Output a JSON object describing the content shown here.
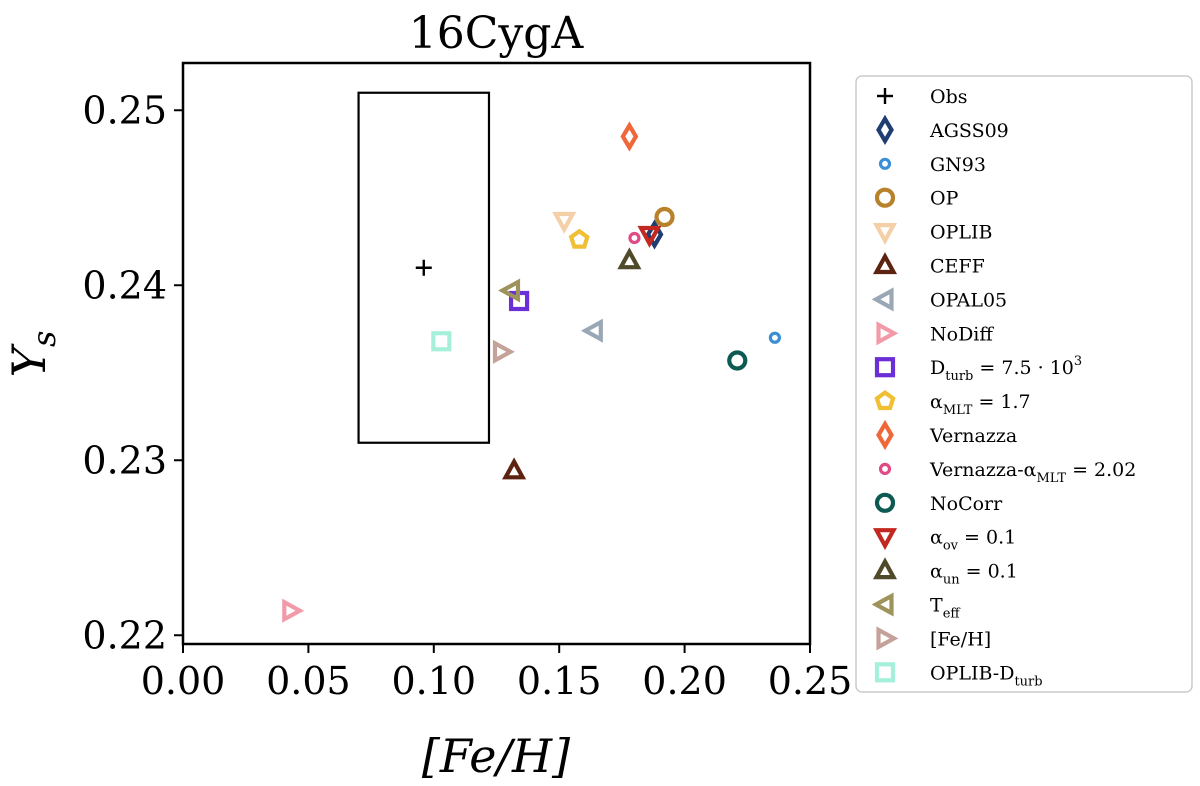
{
  "chart_data": {
    "type": "scatter",
    "title": "16CygA",
    "xlabel": "[Fe/H]",
    "ylabel": "Y_s",
    "xlim": [
      0.0,
      0.25
    ],
    "ylim": [
      0.2195,
      0.2527
    ],
    "x_ticks": [
      "0.00",
      "0.05",
      "0.10",
      "0.15",
      "0.20",
      "0.25"
    ],
    "y_ticks": [
      "0.22",
      "0.23",
      "0.24",
      "0.25"
    ],
    "grid": false,
    "legend_position": "outside right",
    "obs_box": {
      "x": [
        0.07,
        0.122
      ],
      "y": [
        0.231,
        0.251
      ]
    },
    "series": [
      {
        "name": "Obs",
        "marker": "plus",
        "color": "#000000",
        "x": 0.096,
        "y": 0.241
      },
      {
        "name": "AGSS09",
        "marker": "diamond",
        "color": "#1f3d73",
        "x": 0.188,
        "y": 0.2429
      },
      {
        "name": "GN93",
        "marker": "circle-small",
        "color": "#3b8fd6",
        "x": 0.236,
        "y": 0.237
      },
      {
        "name": "OP",
        "marker": "circle",
        "color": "#b8822b",
        "x": 0.192,
        "y": 0.2439
      },
      {
        "name": "OPLIB",
        "marker": "triangle-down",
        "color": "#f5cfa8",
        "x": 0.152,
        "y": 0.2437
      },
      {
        "name": "CEFF",
        "marker": "triangle-up",
        "color": "#5c2410",
        "x": 0.132,
        "y": 0.2294
      },
      {
        "name": "OPAL05",
        "marker": "triangle-left",
        "color": "#9aa8b5",
        "x": 0.164,
        "y": 0.2374
      },
      {
        "name": "NoDiff",
        "marker": "triangle-right",
        "color": "#f29aa8",
        "x": 0.043,
        "y": 0.2214
      },
      {
        "name": "D_turb = 7.5 · 10^3",
        "marker": "square",
        "color": "#6a2fd6",
        "x": 0.134,
        "y": 0.2391
      },
      {
        "name": "α_MLT = 1.7",
        "marker": "pentagon",
        "color": "#f0bf33",
        "x": 0.158,
        "y": 0.2426
      },
      {
        "name": "Vernazza",
        "marker": "diamond",
        "color": "#f0683a",
        "x": 0.178,
        "y": 0.2485
      },
      {
        "name": "Vernazza-α_MLT = 2.02",
        "marker": "circle-small",
        "color": "#e04a86",
        "x": 0.18,
        "y": 0.2427
      },
      {
        "name": "NoCorr",
        "marker": "circle",
        "color": "#0c5a52",
        "x": 0.221,
        "y": 0.2357
      },
      {
        "name": "α_ov = 0.1",
        "marker": "triangle-down",
        "color": "#c2281f",
        "x": 0.186,
        "y": 0.2429
      },
      {
        "name": "α_un = 0.1",
        "marker": "triangle-up",
        "color": "#4f4a2a",
        "x": 0.178,
        "y": 0.2414
      },
      {
        "name": "T_eff",
        "marker": "triangle-left",
        "color": "#9e935a",
        "x": 0.131,
        "y": 0.2397
      },
      {
        "name": "[Fe/H]",
        "marker": "triangle-right",
        "color": "#c4a29a",
        "x": 0.127,
        "y": 0.2362
      },
      {
        "name": "OPLIB-D_turb",
        "marker": "square",
        "color": "#a6f0db",
        "x": 0.103,
        "y": 0.2368
      }
    ]
  }
}
